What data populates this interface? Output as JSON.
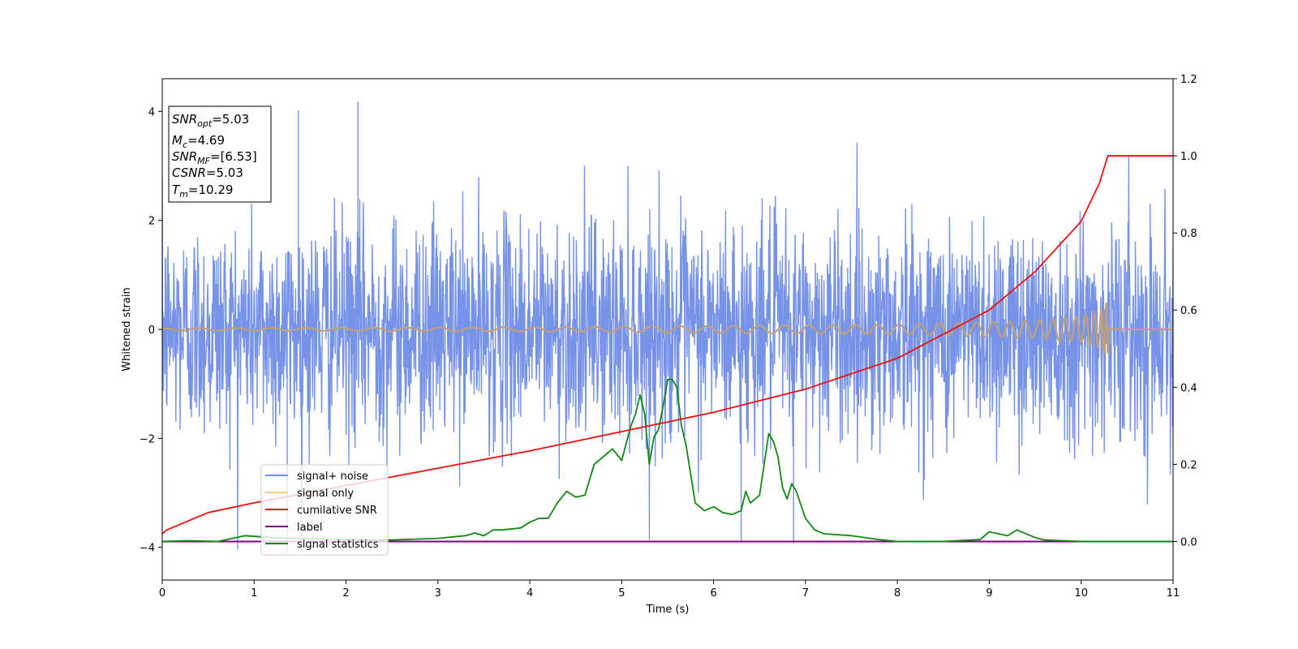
{
  "chart_data": {
    "type": "line",
    "xlabel": "Time (s)",
    "ylabel_left": "Whitened strain",
    "ylabel_right": "",
    "xlim": [
      0,
      11
    ],
    "ylim_left": [
      -4.6,
      4.6
    ],
    "ylim_right": [
      -0.1,
      1.2
    ],
    "x_ticks": [
      0,
      1,
      2,
      3,
      4,
      5,
      6,
      7,
      8,
      9,
      10,
      11
    ],
    "y_left_ticks": [
      -4,
      -2,
      0,
      2,
      4
    ],
    "y_left_tick_labels": [
      "−4",
      "−2",
      "0",
      "2",
      "4"
    ],
    "y_right_ticks": [
      0.0,
      0.2,
      0.4,
      0.6,
      0.8,
      1.0,
      1.2
    ],
    "y_right_tick_labels": [
      "0.0",
      "0.2",
      "0.4",
      "0.6",
      "0.8",
      "1.0",
      "1.2"
    ],
    "grid": false,
    "legend_position": "lower-left",
    "colors": {
      "noise": "#7793e8",
      "signal": "#c0a078",
      "snr": "#ee1111",
      "label": "#800080",
      "statistics": "#118811"
    },
    "legend": [
      {
        "label": "signal+ noise",
        "color": "#6f8ff0"
      },
      {
        "label": "signal only",
        "color": "#f5cf7e"
      },
      {
        "label": "cumilative SNR",
        "color": "#ee1111"
      },
      {
        "label": "label",
        "color": "#800080"
      },
      {
        "label": "signal statistics",
        "color": "#118811"
      }
    ],
    "noise": {
      "axis": "left",
      "envelope_sigma": 1.0,
      "visible_range": [
        -4.1,
        4.2
      ],
      "notable_peaks": [
        {
          "x": 2.13,
          "y": 4.18
        },
        {
          "x": 1.48,
          "y": 4.02
        },
        {
          "x": 6.3,
          "y": -3.9
        },
        {
          "x": 6.87,
          "y": -3.93
        },
        {
          "x": 1.36,
          "y": -4.1
        }
      ]
    },
    "signal_only": {
      "axis": "left",
      "description_points": [
        {
          "x": 0.0,
          "amp": 0.02
        },
        {
          "x": 4.0,
          "amp": 0.04
        },
        {
          "x": 8.0,
          "amp": 0.09
        },
        {
          "x": 9.5,
          "amp": 0.16
        },
        {
          "x": 10.0,
          "amp": 0.24
        },
        {
          "x": 10.2,
          "amp": 0.34
        },
        {
          "x": 10.29,
          "amp": 0.52
        },
        {
          "x": 10.3,
          "amp": 0.0
        }
      ]
    },
    "cumulative_snr": {
      "axis": "right",
      "x": [
        0,
        0.05,
        0.5,
        1,
        2,
        3,
        4,
        5,
        6,
        7,
        8,
        9,
        9.5,
        10,
        10.2,
        10.29,
        10.3,
        11
      ],
      "y": [
        0.02,
        0.03,
        0.075,
        0.1,
        0.145,
        0.19,
        0.235,
        0.285,
        0.335,
        0.395,
        0.475,
        0.6,
        0.7,
        0.83,
        0.93,
        1.0,
        1.0,
        1.0
      ]
    },
    "label_line": {
      "axis": "right",
      "x": [
        0,
        11
      ],
      "y": [
        0.0,
        0.0
      ]
    },
    "signal_statistics": {
      "axis": "right",
      "x": [
        0,
        0.3,
        0.6,
        0.9,
        1.2,
        1.5,
        2.0,
        2.5,
        3.0,
        3.3,
        3.4,
        3.5,
        3.6,
        3.7,
        3.9,
        4.0,
        4.1,
        4.2,
        4.3,
        4.4,
        4.5,
        4.6,
        4.7,
        4.8,
        4.9,
        5.0,
        5.1,
        5.15,
        5.2,
        5.25,
        5.3,
        5.35,
        5.4,
        5.45,
        5.5,
        5.55,
        5.6,
        5.65,
        5.7,
        5.8,
        5.9,
        6.0,
        6.1,
        6.2,
        6.3,
        6.35,
        6.4,
        6.5,
        6.55,
        6.6,
        6.65,
        6.7,
        6.75,
        6.8,
        6.85,
        6.9,
        7.0,
        7.1,
        7.2,
        7.5,
        7.8,
        8.0,
        8.5,
        8.9,
        9.0,
        9.1,
        9.2,
        9.3,
        9.4,
        9.5,
        9.6,
        9.8,
        10.0,
        10.5,
        11.0
      ],
      "y": [
        0.0,
        0.002,
        0.0,
        0.015,
        0.01,
        0.008,
        0.005,
        0.004,
        0.008,
        0.015,
        0.022,
        0.015,
        0.03,
        0.03,
        0.035,
        0.05,
        0.06,
        0.06,
        0.1,
        0.13,
        0.115,
        0.12,
        0.2,
        0.22,
        0.24,
        0.21,
        0.3,
        0.33,
        0.38,
        0.33,
        0.2,
        0.27,
        0.29,
        0.35,
        0.42,
        0.42,
        0.4,
        0.3,
        0.25,
        0.1,
        0.08,
        0.09,
        0.075,
        0.07,
        0.08,
        0.13,
        0.1,
        0.12,
        0.2,
        0.28,
        0.26,
        0.22,
        0.14,
        0.11,
        0.15,
        0.13,
        0.06,
        0.03,
        0.02,
        0.015,
        0.005,
        0.0,
        0.0,
        0.005,
        0.025,
        0.02,
        0.015,
        0.03,
        0.02,
        0.01,
        0.004,
        0.002,
        0.0,
        0.0,
        0.0
      ]
    }
  },
  "annotation": {
    "snr_opt": {
      "base": "SNR",
      "sub": "opt",
      "value": "=5.03"
    },
    "mc": {
      "base": "M",
      "sub": "c",
      "value": "=4.69"
    },
    "snr_mf": {
      "base": "SNR",
      "sub": "MF",
      "value": "=[6.53]"
    },
    "csnr": {
      "base": "CSNR",
      "value": "=5.03"
    },
    "tm": {
      "base": "T",
      "sub": "m",
      "value": "=10.29"
    }
  }
}
